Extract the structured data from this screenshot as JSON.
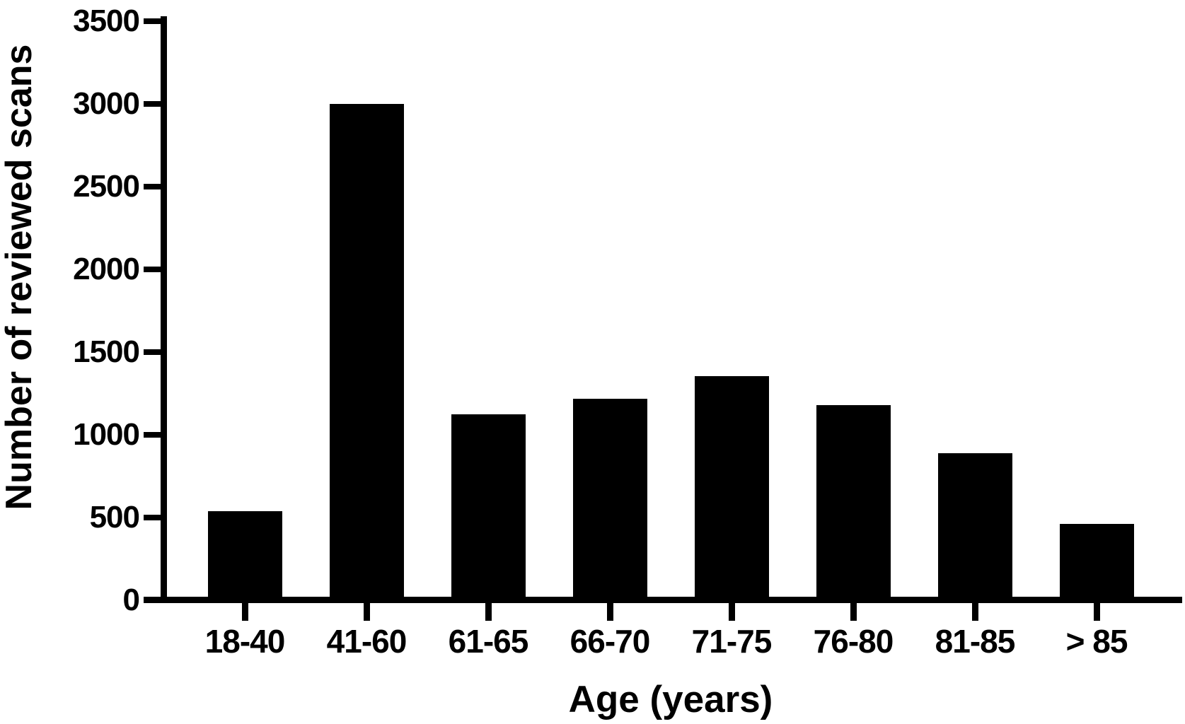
{
  "figure": {
    "background": "#ffffff"
  },
  "chart_data": {
    "type": "bar",
    "title": "",
    "xlabel": "Age (years)",
    "ylabel": "Number of reviewed scans",
    "categories": [
      "18-40",
      "41-60",
      "61-65",
      "66-70",
      "71-75",
      "76-80",
      "81-85",
      "> 85"
    ],
    "values": [
      540,
      3000,
      1125,
      1220,
      1355,
      1180,
      890,
      460
    ],
    "yticks": [
      "0",
      "500",
      "1000",
      "1500",
      "2000",
      "2500",
      "3000",
      "3500"
    ],
    "ylim": [
      0,
      3500
    ],
    "grid": false,
    "legend": null,
    "bar_color": "#000000",
    "axis_color": "#000000",
    "text_color": "#000000"
  }
}
